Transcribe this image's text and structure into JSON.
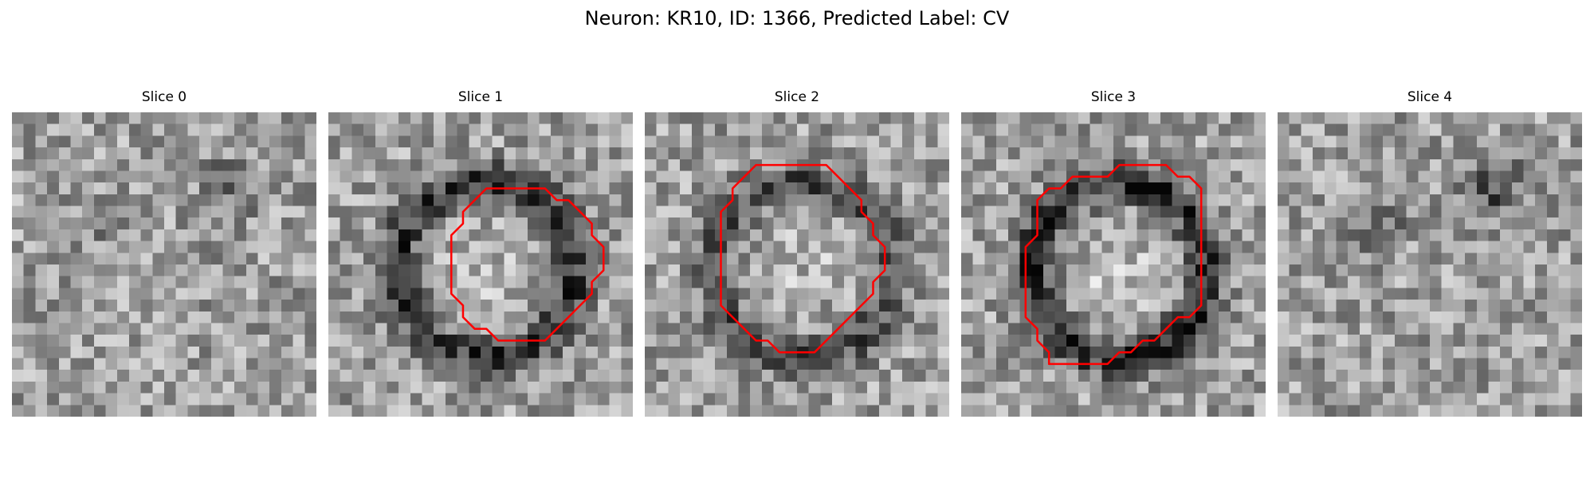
{
  "figure": {
    "title": "Neuron: KR10, ID: 1366, Predicted Label: CV"
  },
  "colors": {
    "contour": "#ff0000",
    "background": "#ffffff"
  },
  "panels": [
    {
      "title": "Slice 0",
      "seed": 11,
      "ring": 0.0,
      "dark_spot": 0.5,
      "contour": []
    },
    {
      "title": "Slice 1",
      "seed": 23,
      "ring": 0.9,
      "dark_spot": 0.0,
      "contour": [
        [
          14.5,
          6.5
        ],
        [
          18.5,
          6.5
        ],
        [
          19.5,
          7.5
        ],
        [
          20.5,
          7.5
        ],
        [
          21.5,
          8.5
        ],
        [
          22.5,
          9.5
        ],
        [
          22.5,
          10.5
        ],
        [
          23.5,
          11.5
        ],
        [
          23.5,
          13.5
        ],
        [
          22.5,
          14.5
        ],
        [
          22.5,
          15.5
        ],
        [
          21.5,
          16.5
        ],
        [
          20.5,
          17.5
        ],
        [
          19.5,
          18.5
        ],
        [
          18.5,
          19.5
        ],
        [
          17.5,
          19.5
        ],
        [
          15.5,
          19.5
        ],
        [
          14.5,
          19.5
        ],
        [
          13.5,
          18.5
        ],
        [
          12.5,
          18.5
        ],
        [
          11.5,
          17.5
        ],
        [
          11.5,
          16.5
        ],
        [
          10.5,
          15.5
        ],
        [
          10.5,
          14.5
        ],
        [
          10.5,
          12.5
        ],
        [
          10.5,
          10.5
        ],
        [
          11.5,
          9.5
        ],
        [
          11.5,
          8.5
        ],
        [
          12.5,
          7.5
        ],
        [
          13.5,
          6.5
        ]
      ]
    },
    {
      "title": "Slice 2",
      "seed": 37,
      "ring": 0.7,
      "dark_spot": 0.0,
      "contour": [
        [
          10.5,
          4.5
        ],
        [
          15.5,
          4.5
        ],
        [
          16.5,
          5.5
        ],
        [
          17.5,
          6.5
        ],
        [
          18.5,
          7.5
        ],
        [
          18.5,
          8.5
        ],
        [
          19.5,
          9.5
        ],
        [
          19.5,
          10.5
        ],
        [
          20.5,
          11.5
        ],
        [
          20.5,
          13.5
        ],
        [
          19.5,
          14.5
        ],
        [
          19.5,
          15.5
        ],
        [
          18.5,
          16.5
        ],
        [
          17.5,
          17.5
        ],
        [
          16.5,
          18.5
        ],
        [
          15.5,
          19.5
        ],
        [
          14.5,
          20.5
        ],
        [
          11.5,
          20.5
        ],
        [
          10.5,
          19.5
        ],
        [
          9.5,
          19.5
        ],
        [
          8.5,
          18.5
        ],
        [
          7.5,
          17.5
        ],
        [
          6.5,
          16.5
        ],
        [
          6.5,
          14.5
        ],
        [
          6.5,
          12.5
        ],
        [
          6.5,
          10.5
        ],
        [
          6.5,
          8.5
        ],
        [
          7.5,
          7.5
        ],
        [
          7.5,
          6.5
        ],
        [
          8.5,
          5.5
        ],
        [
          9.5,
          4.5
        ]
      ]
    },
    {
      "title": "Slice 3",
      "seed": 53,
      "ring": 1.0,
      "dark_spot": 0.0,
      "contour": [
        [
          13.5,
          4.5
        ],
        [
          17.5,
          4.5
        ],
        [
          18.5,
          5.5
        ],
        [
          19.5,
          5.5
        ],
        [
          20.5,
          6.5
        ],
        [
          20.5,
          8.5
        ],
        [
          20.5,
          10.5
        ],
        [
          20.5,
          12.5
        ],
        [
          20.5,
          14.5
        ],
        [
          20.5,
          16.5
        ],
        [
          19.5,
          17.5
        ],
        [
          18.5,
          17.5
        ],
        [
          17.5,
          18.5
        ],
        [
          16.5,
          19.5
        ],
        [
          15.5,
          19.5
        ],
        [
          14.5,
          20.5
        ],
        [
          13.5,
          20.5
        ],
        [
          12.5,
          21.5
        ],
        [
          10.5,
          21.5
        ],
        [
          8.5,
          21.5
        ],
        [
          7.5,
          21.5
        ],
        [
          7.5,
          20.5
        ],
        [
          6.5,
          19.5
        ],
        [
          6.5,
          18.5
        ],
        [
          5.5,
          17.5
        ],
        [
          5.5,
          16.5
        ],
        [
          5.5,
          14.5
        ],
        [
          5.5,
          13.5
        ],
        [
          5.5,
          11.5
        ],
        [
          6.5,
          10.5
        ],
        [
          6.5,
          9.5
        ],
        [
          6.5,
          8.5
        ],
        [
          6.5,
          7.5
        ],
        [
          7.5,
          6.5
        ],
        [
          8.5,
          6.5
        ],
        [
          9.5,
          5.5
        ],
        [
          10.5,
          5.5
        ],
        [
          12.5,
          5.5
        ]
      ]
    },
    {
      "title": "Slice 4",
      "seed": 71,
      "ring": 0.0,
      "dark_spot": 0.8,
      "contour": []
    }
  ]
}
